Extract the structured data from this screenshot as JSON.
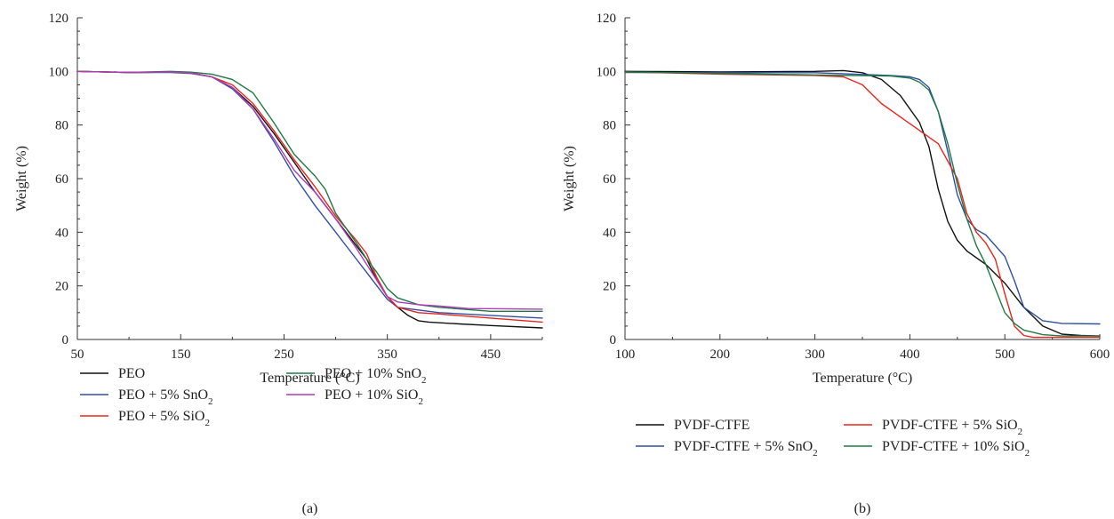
{
  "chart_data": [
    {
      "type": "line",
      "panel_label": "(a)",
      "xlabel": "Temperature (°C)",
      "ylabel": "Weight (%)",
      "xlim": [
        50,
        500
      ],
      "ylim": [
        0,
        120
      ],
      "xticks": [
        50,
        150,
        250,
        350,
        450
      ],
      "yticks": [
        0,
        20,
        40,
        60,
        80,
        100,
        120
      ],
      "legend_position": "bottom",
      "series": [
        {
          "name": "PEO",
          "color": "#111111",
          "legend_row": 0,
          "legend_col": 0,
          "x": [
            50,
            100,
            140,
            160,
            180,
            200,
            220,
            240,
            260,
            280,
            300,
            320,
            330,
            340,
            350,
            360,
            370,
            380,
            390,
            420,
            450,
            500
          ],
          "y": [
            100,
            99.6,
            99.7,
            99.4,
            98,
            94,
            87,
            77,
            66,
            55,
            45,
            35,
            30,
            22,
            16,
            12,
            9,
            7,
            6.5,
            5.8,
            5.2,
            4.3
          ]
        },
        {
          "name": "PEO + 5% SnO₂",
          "color": "#2f4fa0",
          "legend_row": 1,
          "legend_col": 0,
          "x": [
            50,
            100,
            140,
            160,
            180,
            200,
            220,
            240,
            260,
            280,
            300,
            320,
            330,
            340,
            350,
            360,
            380,
            400,
            450,
            500
          ],
          "y": [
            100,
            99.6,
            99.6,
            99.2,
            98,
            93.5,
            86,
            74,
            61,
            50,
            40,
            30,
            25,
            20,
            15,
            12,
            11,
            10,
            9,
            8
          ]
        },
        {
          "name": "PEO + 5% SiO₂",
          "color": "#e8251d",
          "legend_row": 2,
          "legend_col": 0,
          "x": [
            50,
            100,
            140,
            160,
            180,
            200,
            220,
            240,
            260,
            280,
            300,
            320,
            330,
            340,
            350,
            360,
            380,
            400,
            450,
            500
          ],
          "y": [
            100,
            99.6,
            99.7,
            99.4,
            98,
            95,
            88,
            78,
            67,
            57,
            46,
            37,
            32,
            23,
            16,
            12,
            10,
            9.5,
            8,
            6.5
          ]
        },
        {
          "name": "PEO + 10% SnO₂",
          "color": "#1f7a45",
          "legend_row": 0,
          "legend_col": 1,
          "x": [
            50,
            100,
            140,
            160,
            180,
            200,
            220,
            240,
            260,
            280,
            290,
            300,
            320,
            330,
            340,
            350,
            360,
            380,
            400,
            450,
            500
          ],
          "y": [
            100,
            99.6,
            100,
            99.7,
            99,
            97,
            92,
            81,
            69,
            61,
            56,
            47,
            36,
            30,
            25,
            19,
            15.5,
            13,
            12,
            10.5,
            10.5
          ]
        },
        {
          "name": "PEO + 10% SiO₂",
          "color": "#b03ab8",
          "legend_row": 1,
          "legend_col": 1,
          "x": [
            50,
            100,
            140,
            160,
            180,
            200,
            220,
            240,
            260,
            280,
            300,
            320,
            330,
            340,
            350,
            360,
            380,
            400,
            430,
            450,
            500
          ],
          "y": [
            100,
            99.6,
            99.7,
            99.4,
            98,
            94,
            86,
            75,
            63,
            55,
            45,
            34,
            28,
            22,
            16,
            14,
            13,
            12.5,
            11.5,
            11.5,
            11.3
          ]
        }
      ]
    },
    {
      "type": "line",
      "panel_label": "(b)",
      "xlabel": "Temperature (°C)",
      "ylabel": "Weight (%)",
      "xlim": [
        100,
        600
      ],
      "ylim": [
        0,
        120
      ],
      "xticks": [
        100,
        200,
        300,
        400,
        500,
        600
      ],
      "yticks": [
        0,
        20,
        40,
        60,
        80,
        100,
        120
      ],
      "legend_position": "bottom",
      "series": [
        {
          "name": "PVDF-CTFE",
          "color": "#111111",
          "legend_row": 0,
          "legend_col": 0,
          "x": [
            100,
            200,
            300,
            330,
            350,
            370,
            390,
            410,
            420,
            430,
            440,
            450,
            460,
            480,
            500,
            520,
            540,
            560,
            580,
            600
          ],
          "y": [
            100,
            99.8,
            100,
            100.3,
            99.5,
            97,
            91,
            81,
            72,
            56,
            44,
            37,
            33,
            28,
            21,
            12,
            5,
            2,
            1.5,
            1.3
          ]
        },
        {
          "name": "PVDF-CTFE + 5% SnO₂",
          "color": "#2f4fa0",
          "legend_row": 1,
          "legend_col": 0,
          "x": [
            100,
            200,
            300,
            380,
            400,
            410,
            420,
            430,
            440,
            450,
            460,
            470,
            480,
            490,
            500,
            510,
            520,
            540,
            560,
            600
          ],
          "y": [
            99.6,
            99.5,
            99.5,
            98.5,
            98,
            97,
            94,
            85,
            70,
            54,
            45,
            41,
            39,
            35,
            31,
            22,
            12,
            7,
            6,
            5.8
          ]
        },
        {
          "name": "PVDF-CTFE + 5% SiO₂",
          "color": "#e8251d",
          "legend_row": 0,
          "legend_col": 1,
          "x": [
            100,
            200,
            300,
            330,
            350,
            370,
            390,
            410,
            430,
            450,
            460,
            470,
            480,
            490,
            500,
            510,
            520,
            530,
            560,
            600
          ],
          "y": [
            99.8,
            99,
            98.5,
            98,
            95,
            88,
            83,
            78,
            73,
            60,
            47,
            40,
            36,
            30,
            17,
            5,
            1.5,
            0.8,
            0.8,
            0.8
          ]
        },
        {
          "name": "PVDF-CTFE + 10% SiO₂",
          "color": "#1f7a45",
          "legend_row": 1,
          "legend_col": 1,
          "x": [
            100,
            200,
            300,
            380,
            400,
            410,
            420,
            430,
            440,
            450,
            460,
            470,
            480,
            490,
            500,
            510,
            520,
            540,
            560,
            600
          ],
          "y": [
            99.8,
            99.2,
            98.7,
            98.3,
            97.5,
            96,
            93,
            85,
            73,
            58,
            45,
            35,
            28,
            19,
            10,
            6,
            3.5,
            1.8,
            1.3,
            1.3
          ]
        }
      ]
    }
  ]
}
